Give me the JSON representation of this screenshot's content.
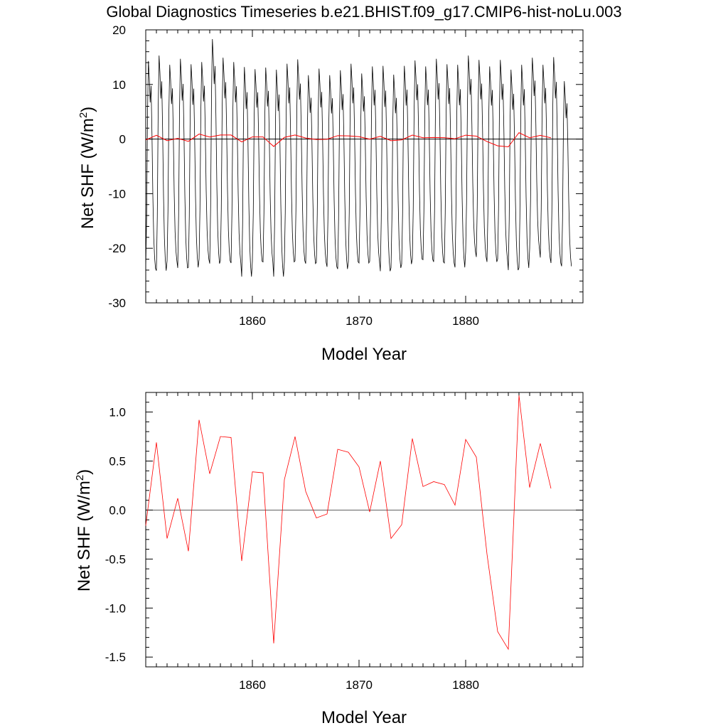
{
  "title": "Global Diagnostics Timeseries b.e21.BHIST.f09_g17.CMIP6-hist-noLu.003",
  "colors": {
    "monthly": "#000000",
    "annual": "#ff0000",
    "zero_line": "#000000",
    "frame": "#000000"
  },
  "chart_data": [
    {
      "type": "line",
      "xlabel": "Model Year",
      "ylabel": "Net SHF (W/m",
      "ylabel_sup": "2",
      "ylabel_close": ")",
      "xlim": [
        1850,
        1891
      ],
      "ylim": [
        -30,
        20
      ],
      "xticks": [
        1860,
        1870,
        1880
      ],
      "xtick_labels": [
        "1860",
        "1870",
        "1880"
      ],
      "yticks": [
        20,
        10,
        0,
        -10,
        -20,
        -30
      ],
      "ytick_labels": [
        "20",
        "10",
        "0",
        "-10",
        "-20",
        "-30"
      ],
      "reference_line": 0,
      "monthly": {
        "start_year": 1850,
        "cycle_min": [
          -23.7,
          -24.1,
          -22.3,
          -23.6,
          -23.5,
          -22.0,
          -22.8,
          -22.3,
          -22.7,
          -25.2,
          -22.4,
          -22.5,
          -25.2,
          -22.5,
          -22.3,
          -22.8,
          -22.6,
          -23.4,
          -23.8,
          -22.5,
          -22.7,
          -22.4,
          -24.2,
          -23.6,
          -22.9,
          -22.0,
          -22.1,
          -22.5,
          -22.7,
          -23.5,
          -20.6,
          -21.6,
          -22.5,
          -22.0,
          -24.0,
          -23.6,
          -20.1,
          -21.7,
          -22.7,
          -23.3
        ],
        "cycle_max": [
          14.3,
          15.3,
          13.6,
          14.7,
          13.7,
          14.1,
          18.3,
          14.9,
          14.1,
          13.2,
          12.8,
          13.1,
          12.7,
          13.8,
          14.6,
          11.7,
          12.9,
          11.7,
          12.6,
          13.8,
          12.0,
          13.3,
          13.4,
          11.8,
          13.4,
          14.4,
          13.3,
          14.7,
          13.7,
          13.6,
          15.3,
          14.5,
          13.3,
          14.5,
          12.7,
          13.6,
          14.9,
          13.6,
          15.0,
          10.6
        ]
      },
      "series": [
        {
          "start_year": 1850,
          "values": [
            -0.16,
            0.69,
            -0.29,
            0.12,
            -0.42,
            0.92,
            0.37,
            0.75,
            0.74,
            -0.52,
            0.39,
            0.38,
            -1.36,
            0.31,
            0.75,
            0.19,
            -0.08,
            -0.04,
            0.62,
            0.59,
            0.44,
            -0.02,
            0.5,
            -0.29,
            -0.15,
            0.73,
            0.24,
            0.29,
            0.26,
            0.05,
            0.72,
            0.54,
            -0.45,
            -1.24,
            -1.42,
            1.17,
            0.23,
            0.68,
            0.22
          ]
        }
      ]
    },
    {
      "type": "line",
      "xlabel": "Model Year",
      "ylabel": "Net SHF (W/m",
      "ylabel_sup": "2",
      "ylabel_close": ")",
      "xlim": [
        1850,
        1891
      ],
      "ylim": [
        -1.6,
        1.2
      ],
      "xticks": [
        1860,
        1870,
        1880
      ],
      "xtick_labels": [
        "1860",
        "1870",
        "1880"
      ],
      "yticks": [
        1.0,
        0.5,
        0.0,
        -0.5,
        -1.0,
        -1.5
      ],
      "ytick_labels": [
        "1.0",
        "0.5",
        "0.0",
        "-0.5",
        "-1.0",
        "-1.5"
      ],
      "reference_line": 0,
      "series": [
        {
          "start_year": 1850,
          "values": [
            -0.16,
            0.69,
            -0.29,
            0.12,
            -0.42,
            0.92,
            0.37,
            0.75,
            0.74,
            -0.52,
            0.39,
            0.38,
            -1.36,
            0.31,
            0.75,
            0.19,
            -0.08,
            -0.04,
            0.62,
            0.59,
            0.44,
            -0.02,
            0.5,
            -0.29,
            -0.15,
            0.73,
            0.24,
            0.29,
            0.26,
            0.05,
            0.72,
            0.54,
            -0.45,
            -1.24,
            -1.42,
            1.17,
            0.23,
            0.68,
            0.22
          ]
        }
      ]
    }
  ]
}
